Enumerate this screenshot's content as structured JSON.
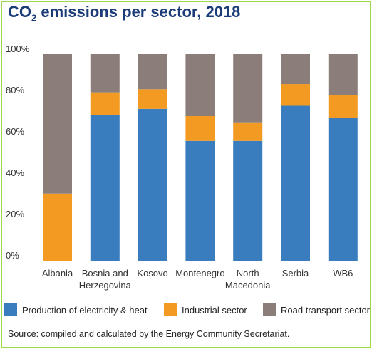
{
  "title": {
    "prefix": "CO",
    "subscript": "2",
    "suffix": " emissions per sector, 2018"
  },
  "chart_data": {
    "type": "bar",
    "stacked": true,
    "categories": [
      "Albania",
      "Bosnia and Herzegovina",
      "Kosovo",
      "Montenegro",
      "North Macedonia",
      "Serbia",
      "WB6"
    ],
    "category_lines": [
      [
        "Albania"
      ],
      [
        "Bosnia and",
        "Herzegovina"
      ],
      [
        "Kosovo"
      ],
      [
        "Montenegro"
      ],
      [
        "North",
        "Macedonia"
      ],
      [
        "Serbia"
      ],
      [
        "WB6"
      ]
    ],
    "series": [
      {
        "name": "Production of electricity & heat",
        "color": "#3a7dbf",
        "values": [
          0,
          70.5,
          73.5,
          58,
          58,
          75,
          69
        ]
      },
      {
        "name": "Industrial sector",
        "color": "#f29a22",
        "values": [
          32.5,
          11,
          9.5,
          12,
          9,
          10.5,
          11
        ]
      },
      {
        "name": "Road transport sector",
        "color": "#8b7e7a",
        "values": [
          67.5,
          18.5,
          17,
          30,
          33,
          14.5,
          20
        ]
      }
    ],
    "y_ticks": [
      "0%",
      "20%",
      "40%",
      "60%",
      "80%",
      "100%"
    ],
    "ylim": [
      0,
      100
    ],
    "grid": false,
    "legend_position": "bottom"
  },
  "source": "Source: compiled and calculated by the Energy Community Secretariat."
}
